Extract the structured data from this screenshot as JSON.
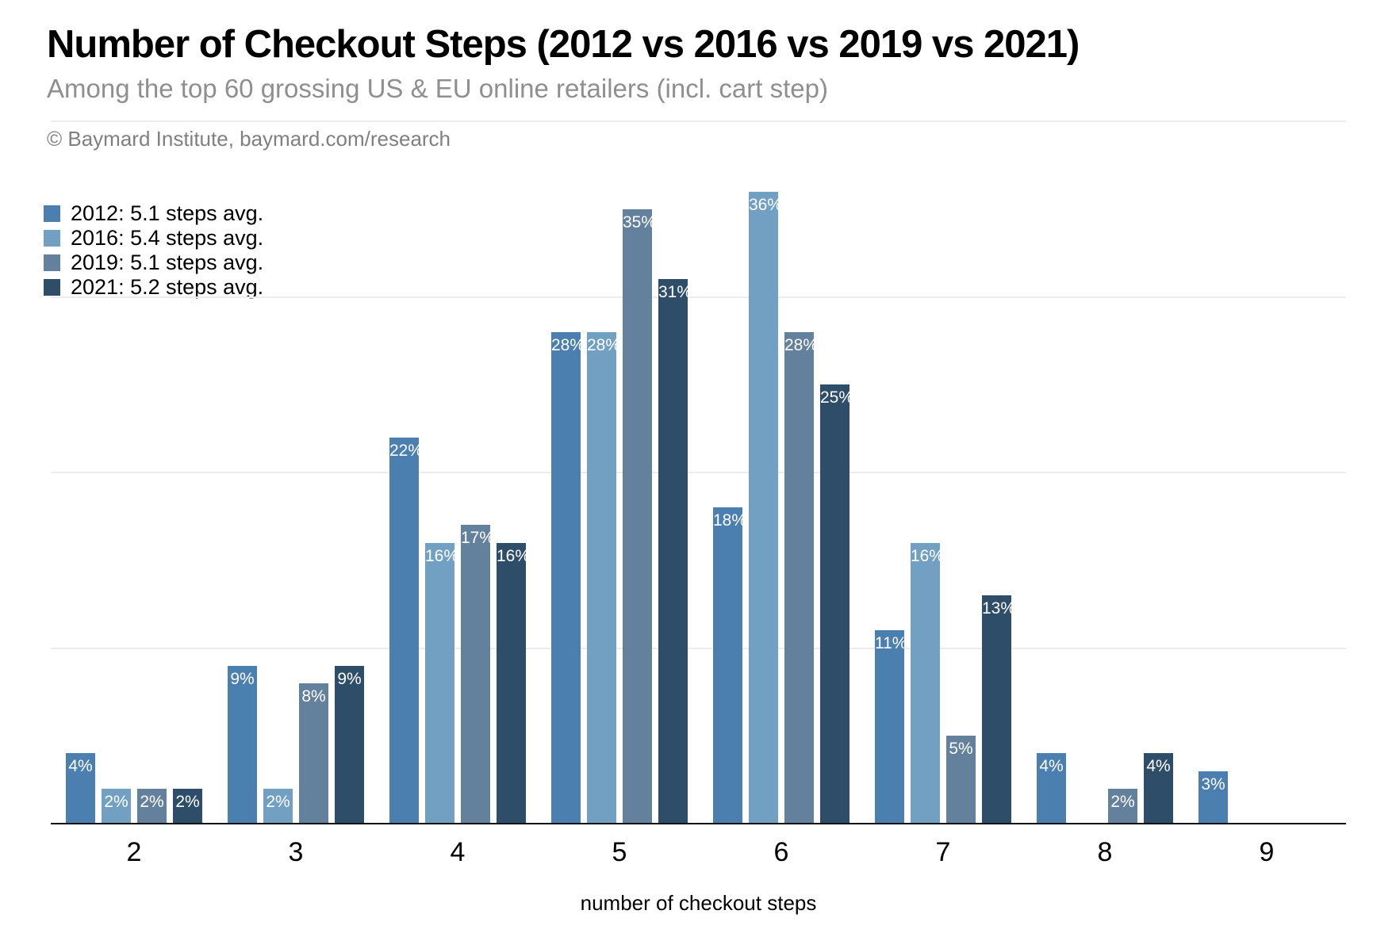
{
  "header": {
    "title": "Number of Checkout Steps (2012 vs 2016 vs 2019 vs 2021)",
    "subtitle": "Among the top 60 grossing US & EU online retailers (incl. cart step)",
    "copyright": "© Baymard Institute, baymard.com/research"
  },
  "legend": [
    {
      "label": "2012: 5.1 steps avg.",
      "color": "#4a7fb0"
    },
    {
      "label": "2016: 5.4 steps avg.",
      "color": "#71a0c3"
    },
    {
      "label": "2019: 5.1 steps avg.",
      "color": "#63809c"
    },
    {
      "label": "2021: 5.2 steps avg.",
      "color": "#2e4d68"
    }
  ],
  "chart_data": {
    "type": "bar",
    "title": "Number of Checkout Steps (2012 vs 2016 vs 2019 vs 2021)",
    "subtitle": "Among the top 60 grossing US & EU online retailers (incl. cart step)",
    "categories": [
      "2",
      "3",
      "4",
      "5",
      "6",
      "7",
      "8",
      "9"
    ],
    "series": [
      {
        "name": "2012",
        "color": "#4a7fb0",
        "values": [
          4,
          9,
          22,
          28,
          18,
          11,
          4,
          3
        ]
      },
      {
        "name": "2016",
        "color": "#71a0c3",
        "values": [
          2,
          2,
          16,
          28,
          36,
          16,
          0,
          0
        ]
      },
      {
        "name": "2019",
        "color": "#63809c",
        "values": [
          2,
          8,
          17,
          35,
          28,
          5,
          2,
          0
        ]
      },
      {
        "name": "2021",
        "color": "#2e4d68",
        "values": [
          2,
          9,
          16,
          31,
          25,
          13,
          4,
          0
        ]
      }
    ],
    "xlabel": "number of checkout steps",
    "ylabel": "",
    "ylim": [
      0,
      40
    ],
    "gridlines": [
      10,
      20,
      30,
      40
    ],
    "grid": true,
    "legend_position": "top-left",
    "value_suffix": "%",
    "bar_labels": "inside-top"
  }
}
